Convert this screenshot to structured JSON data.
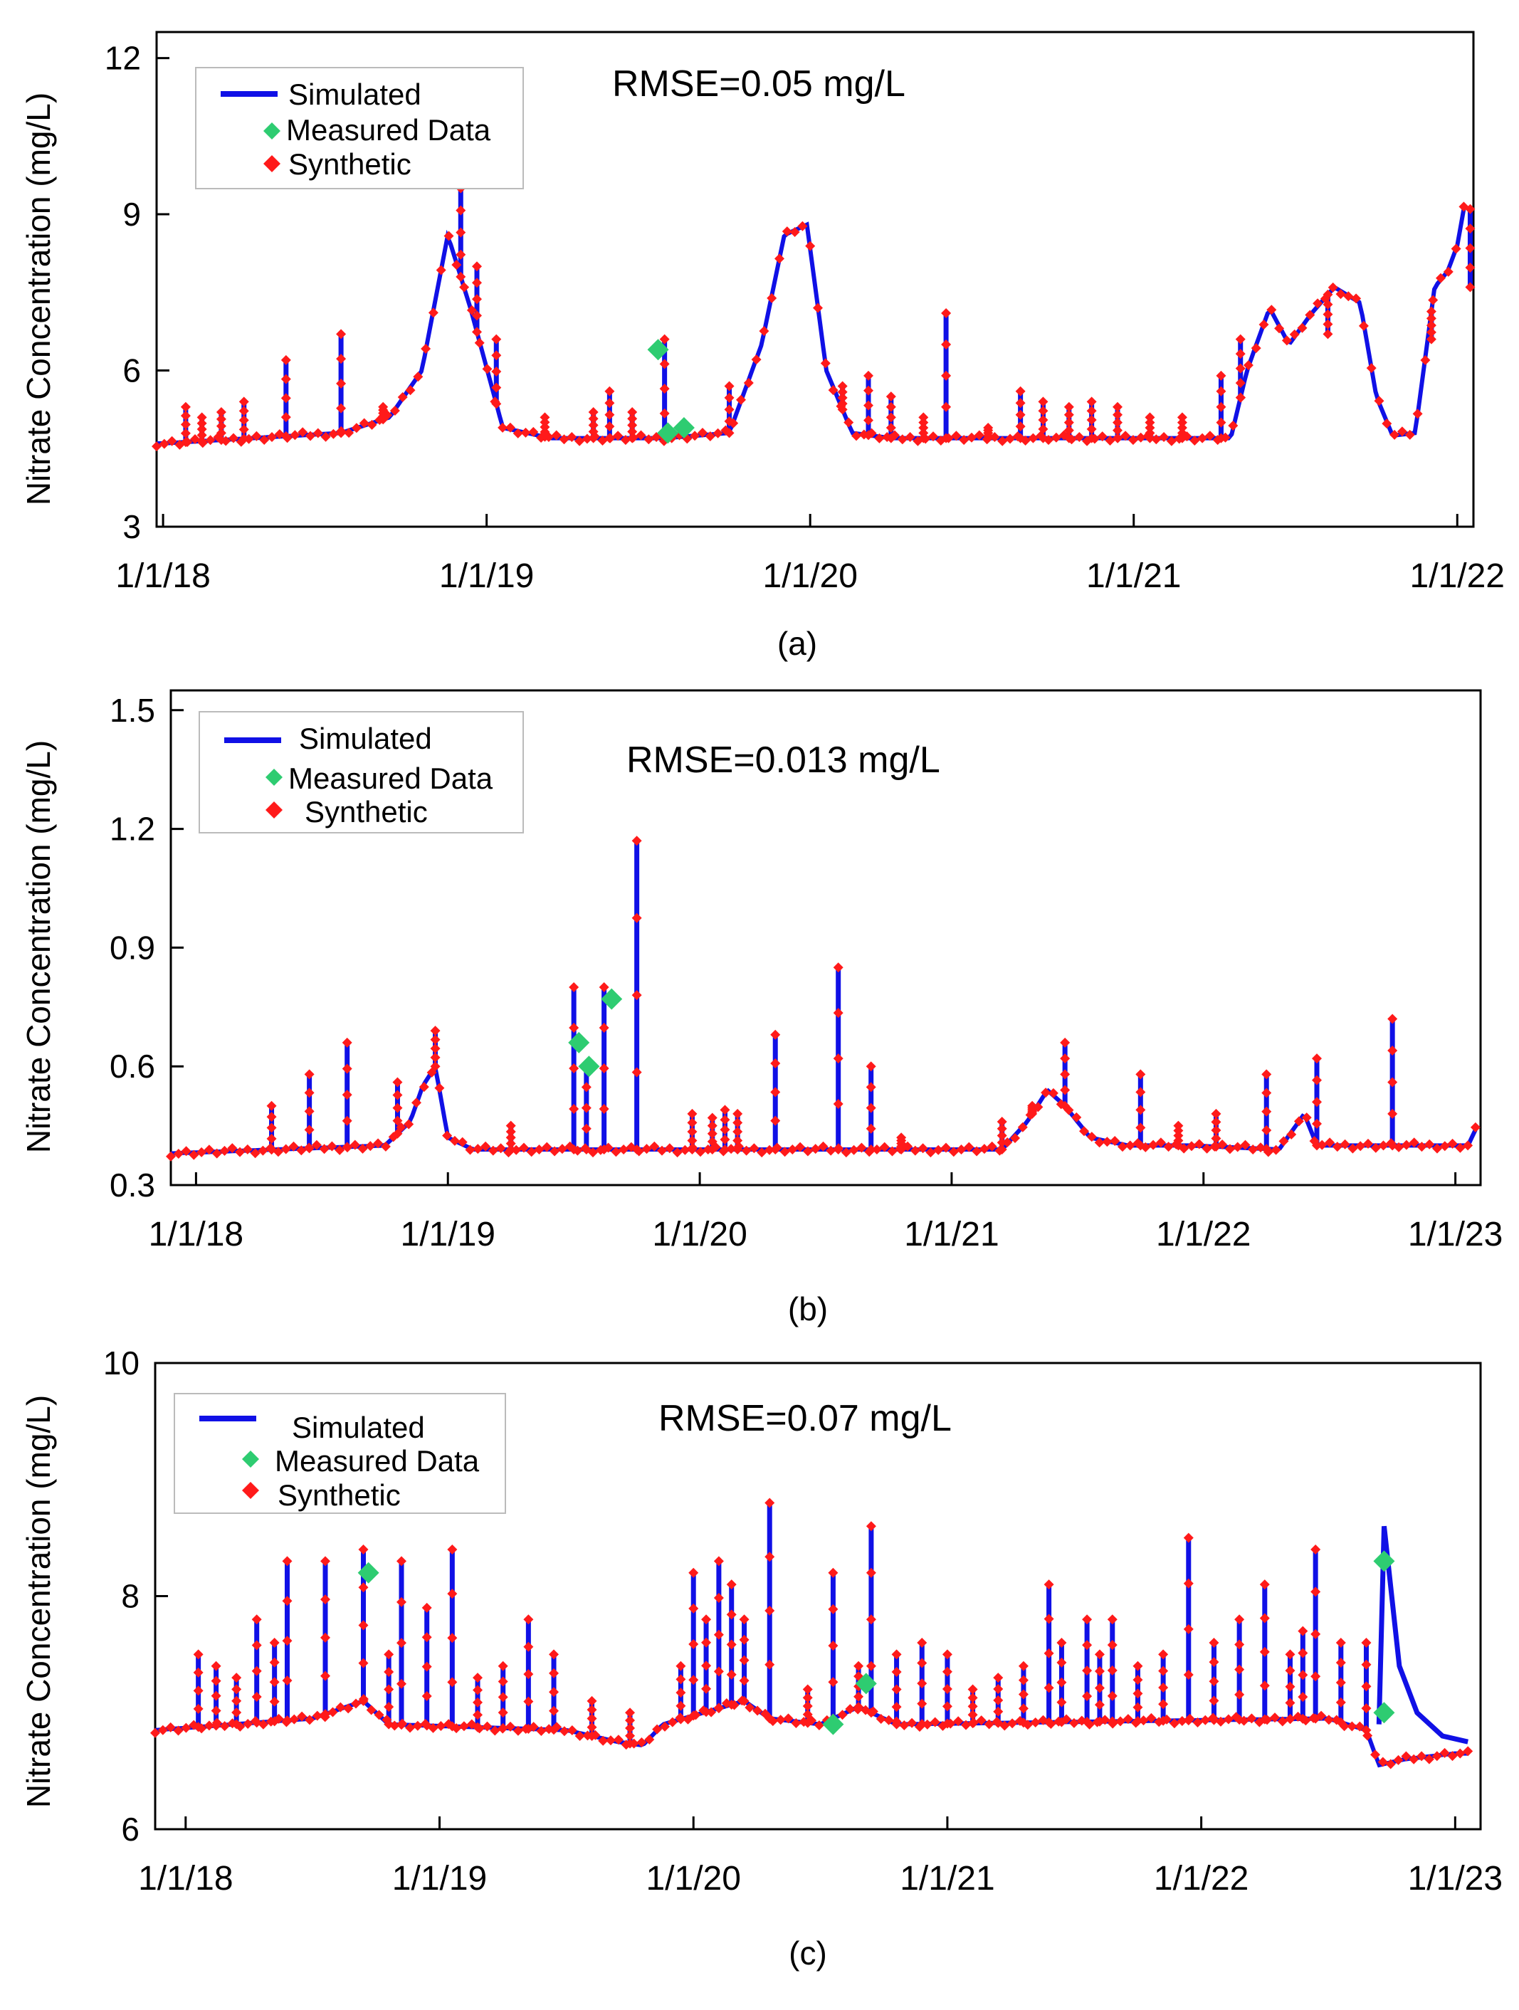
{
  "colors": {
    "simulated": "#1010e6",
    "measured": "#2ecc71",
    "synthetic": "#ff1a1a",
    "axis": "#000000",
    "legend_border": "#bbbbbb"
  },
  "legend": {
    "simulated": "Simulated",
    "measured": "Measured Data",
    "synthetic": "Synthetic"
  },
  "chart_data": [
    {
      "type": "line",
      "panel_label": "(a)",
      "annotation": "RMSE=0.05 mg/L",
      "ylabel": "Nitrate Concentration (mg/L)",
      "xlabel": "",
      "ylim": [
        3,
        12.5
      ],
      "yticks": [
        3,
        6,
        9,
        12
      ],
      "xlim": [
        2017.98,
        2022.05
      ],
      "xticks": [
        {
          "label": "1/1/18",
          "x": 2018.0
        },
        {
          "label": "1/1/19",
          "x": 2019.0
        },
        {
          "label": "1/1/20",
          "x": 2020.0
        },
        {
          "label": "1/1/21",
          "x": 2021.0
        },
        {
          "label": "1/1/22",
          "x": 2022.0
        }
      ],
      "baseline": 4.7,
      "envelope": [
        [
          2018.0,
          4.6
        ],
        [
          2018.55,
          4.8
        ],
        [
          2018.7,
          5.1
        ],
        [
          2018.8,
          6.0
        ],
        [
          2018.88,
          8.6
        ],
        [
          2018.95,
          7.2
        ],
        [
          2019.05,
          4.9
        ],
        [
          2019.2,
          4.7
        ],
        [
          2019.55,
          4.7
        ],
        [
          2019.75,
          4.8
        ],
        [
          2019.85,
          6.5
        ],
        [
          2019.92,
          8.6
        ],
        [
          2019.99,
          8.8
        ],
        [
          2020.05,
          6.0
        ],
        [
          2020.13,
          4.8
        ],
        [
          2020.25,
          4.7
        ],
        [
          2021.3,
          4.7
        ],
        [
          2021.35,
          6.0
        ],
        [
          2021.42,
          7.2
        ],
        [
          2021.48,
          6.5
        ],
        [
          2021.55,
          7.1
        ],
        [
          2021.62,
          7.6
        ],
        [
          2021.7,
          7.3
        ],
        [
          2021.75,
          5.5
        ],
        [
          2021.8,
          4.75
        ],
        [
          2021.87,
          4.8
        ],
        [
          2021.93,
          7.6
        ],
        [
          2021.97,
          7.9
        ],
        [
          2022.0,
          8.4
        ],
        [
          2022.02,
          9.1
        ]
      ],
      "spikes": [
        [
          2018.07,
          5.3
        ],
        [
          2018.12,
          5.1
        ],
        [
          2018.18,
          5.2
        ],
        [
          2018.25,
          5.4
        ],
        [
          2018.38,
          6.2
        ],
        [
          2018.55,
          6.7
        ],
        [
          2018.68,
          5.3
        ],
        [
          2018.92,
          9.5
        ],
        [
          2018.97,
          8.0
        ],
        [
          2019.03,
          6.6
        ],
        [
          2019.18,
          5.1
        ],
        [
          2019.33,
          5.2
        ],
        [
          2019.38,
          5.6
        ],
        [
          2019.45,
          5.2
        ],
        [
          2019.55,
          6.6
        ],
        [
          2019.75,
          5.7
        ],
        [
          2020.1,
          5.7
        ],
        [
          2020.18,
          5.9
        ],
        [
          2020.25,
          5.5
        ],
        [
          2020.35,
          5.1
        ],
        [
          2020.42,
          7.1
        ],
        [
          2020.55,
          4.9
        ],
        [
          2020.65,
          5.6
        ],
        [
          2020.72,
          5.4
        ],
        [
          2020.8,
          5.3
        ],
        [
          2020.87,
          5.4
        ],
        [
          2020.95,
          5.3
        ],
        [
          2021.05,
          5.1
        ],
        [
          2021.15,
          5.1
        ],
        [
          2021.27,
          5.9
        ],
        [
          2021.33,
          6.6
        ],
        [
          2021.6,
          6.7
        ],
        [
          2021.92,
          6.6
        ],
        [
          2022.04,
          7.6
        ]
      ],
      "measured": [
        {
          "x": 2019.53,
          "y": 6.4
        },
        {
          "x": 2019.56,
          "y": 4.8
        },
        {
          "x": 2019.61,
          "y": 4.9
        }
      ]
    },
    {
      "type": "line",
      "panel_label": "(b)",
      "annotation": "RMSE=0.013 mg/L",
      "ylabel": "Nitrate Concentration (mg/L)",
      "xlabel": "",
      "ylim": [
        0.3,
        1.55
      ],
      "yticks": [
        0.3,
        0.6,
        0.9,
        1.2,
        1.5
      ],
      "xlim": [
        2017.9,
        2023.1
      ],
      "xticks": [
        {
          "label": "1/1/18",
          "x": 2018.0
        },
        {
          "label": "1/1/19",
          "x": 2019.0
        },
        {
          "label": "1/1/20",
          "x": 2020.0
        },
        {
          "label": "1/1/21",
          "x": 2021.0
        },
        {
          "label": "1/1/22",
          "x": 2022.0
        },
        {
          "label": "1/1/23",
          "x": 2023.0
        }
      ],
      "baseline": 0.38,
      "envelope": [
        [
          2017.9,
          0.38
        ],
        [
          2018.75,
          0.4
        ],
        [
          2018.85,
          0.46
        ],
        [
          2018.9,
          0.55
        ],
        [
          2018.95,
          0.6
        ],
        [
          2019.0,
          0.42
        ],
        [
          2019.1,
          0.39
        ],
        [
          2021.2,
          0.39
        ],
        [
          2021.3,
          0.46
        ],
        [
          2021.38,
          0.54
        ],
        [
          2021.45,
          0.5
        ],
        [
          2021.55,
          0.42
        ],
        [
          2021.7,
          0.4
        ],
        [
          2021.95,
          0.4
        ],
        [
          2022.3,
          0.39
        ],
        [
          2022.4,
          0.48
        ],
        [
          2022.45,
          0.4
        ],
        [
          2023.05,
          0.4
        ],
        [
          2023.08,
          0.44
        ]
      ],
      "spikes": [
        [
          2018.3,
          0.5
        ],
        [
          2018.45,
          0.58
        ],
        [
          2018.6,
          0.66
        ],
        [
          2018.8,
          0.56
        ],
        [
          2018.95,
          0.69
        ],
        [
          2019.25,
          0.45
        ],
        [
          2019.5,
          0.8
        ],
        [
          2019.55,
          0.6
        ],
        [
          2019.62,
          0.8
        ],
        [
          2019.75,
          1.17
        ],
        [
          2019.97,
          0.48
        ],
        [
          2020.05,
          0.47
        ],
        [
          2020.1,
          0.49
        ],
        [
          2020.15,
          0.48
        ],
        [
          2020.3,
          0.68
        ],
        [
          2020.55,
          0.85
        ],
        [
          2020.68,
          0.6
        ],
        [
          2020.8,
          0.42
        ],
        [
          2021.2,
          0.46
        ],
        [
          2021.32,
          0.5
        ],
        [
          2021.45,
          0.66
        ],
        [
          2021.75,
          0.58
        ],
        [
          2021.9,
          0.45
        ],
        [
          2022.05,
          0.48
        ],
        [
          2022.25,
          0.58
        ],
        [
          2022.45,
          0.62
        ],
        [
          2022.75,
          0.72
        ]
      ],
      "measured": [
        {
          "x": 2019.52,
          "y": 0.66
        },
        {
          "x": 2019.56,
          "y": 0.6
        },
        {
          "x": 2019.65,
          "y": 0.77
        }
      ]
    },
    {
      "type": "line",
      "panel_label": "(c)",
      "annotation": "RMSE=0.07 mg/L",
      "ylabel": "Nitrate Concentration (mg/L)",
      "xlabel": "",
      "ylim": [
        6,
        10
      ],
      "yticks": [
        6,
        8,
        10
      ],
      "xlim": [
        2017.88,
        2023.1
      ],
      "xticks": [
        {
          "label": "1/1/18",
          "x": 2018.0
        },
        {
          "label": "1/1/19",
          "x": 2019.0
        },
        {
          "label": "1/1/20",
          "x": 2020.0
        },
        {
          "label": "1/1/21",
          "x": 2021.0
        },
        {
          "label": "1/1/22",
          "x": 2022.0
        },
        {
          "label": "1/1/23",
          "x": 2023.0
        }
      ],
      "baseline": 6.9,
      "envelope": [
        [
          2017.88,
          6.85
        ],
        [
          2018.5,
          6.95
        ],
        [
          2018.7,
          7.1
        ],
        [
          2018.8,
          6.9
        ],
        [
          2019.5,
          6.85
        ],
        [
          2019.7,
          6.75
        ],
        [
          2019.8,
          6.72
        ],
        [
          2019.88,
          6.9
        ],
        [
          2020.2,
          7.1
        ],
        [
          2020.3,
          6.95
        ],
        [
          2020.5,
          6.9
        ],
        [
          2020.65,
          7.05
        ],
        [
          2020.8,
          6.9
        ],
        [
          2022.5,
          6.95
        ],
        [
          2022.65,
          6.85
        ],
        [
          2022.7,
          6.55
        ],
        [
          2022.8,
          6.6
        ],
        [
          2023.0,
          6.65
        ],
        [
          2023.05,
          6.65
        ]
      ],
      "spikes": [
        [
          2018.05,
          7.5
        ],
        [
          2018.12,
          7.4
        ],
        [
          2018.2,
          7.3
        ],
        [
          2018.28,
          7.8
        ],
        [
          2018.35,
          7.6
        ],
        [
          2018.4,
          8.3
        ],
        [
          2018.55,
          8.3
        ],
        [
          2018.7,
          8.4
        ],
        [
          2018.8,
          7.5
        ],
        [
          2018.85,
          8.3
        ],
        [
          2018.95,
          7.9
        ],
        [
          2019.05,
          8.4
        ],
        [
          2019.15,
          7.3
        ],
        [
          2019.25,
          7.4
        ],
        [
          2019.35,
          7.8
        ],
        [
          2019.45,
          7.5
        ],
        [
          2019.6,
          7.1
        ],
        [
          2019.75,
          7.0
        ],
        [
          2019.95,
          7.4
        ],
        [
          2020.0,
          8.2
        ],
        [
          2020.05,
          7.8
        ],
        [
          2020.1,
          8.3
        ],
        [
          2020.15,
          8.1
        ],
        [
          2020.2,
          7.8
        ],
        [
          2020.3,
          8.8
        ],
        [
          2020.45,
          7.2
        ],
        [
          2020.55,
          8.2
        ],
        [
          2020.65,
          7.4
        ],
        [
          2020.7,
          8.6
        ],
        [
          2020.8,
          7.5
        ],
        [
          2020.9,
          7.6
        ],
        [
          2021.0,
          7.5
        ],
        [
          2021.1,
          7.2
        ],
        [
          2021.2,
          7.3
        ],
        [
          2021.3,
          7.4
        ],
        [
          2021.4,
          8.1
        ],
        [
          2021.45,
          7.6
        ],
        [
          2021.55,
          7.8
        ],
        [
          2021.6,
          7.5
        ],
        [
          2021.65,
          7.8
        ],
        [
          2021.75,
          7.4
        ],
        [
          2021.85,
          7.5
        ],
        [
          2021.95,
          8.5
        ],
        [
          2022.05,
          7.6
        ],
        [
          2022.15,
          7.8
        ],
        [
          2022.25,
          8.1
        ],
        [
          2022.35,
          7.5
        ],
        [
          2022.4,
          7.7
        ],
        [
          2022.45,
          8.4
        ],
        [
          2022.55,
          7.6
        ],
        [
          2022.65,
          7.6
        ]
      ],
      "measured": [
        {
          "x": 2018.72,
          "y": 8.2
        },
        {
          "x": 2020.55,
          "y": 6.9
        },
        {
          "x": 2020.68,
          "y": 7.25
        },
        {
          "x": 2022.72,
          "y": 8.3
        },
        {
          "x": 2022.72,
          "y": 7.0
        }
      ],
      "late_sim": [
        [
          2022.7,
          6.9
        ],
        [
          2022.72,
          8.6
        ],
        [
          2022.78,
          7.4
        ],
        [
          2022.85,
          7.0
        ],
        [
          2022.95,
          6.8
        ],
        [
          2023.05,
          6.75
        ]
      ]
    }
  ]
}
